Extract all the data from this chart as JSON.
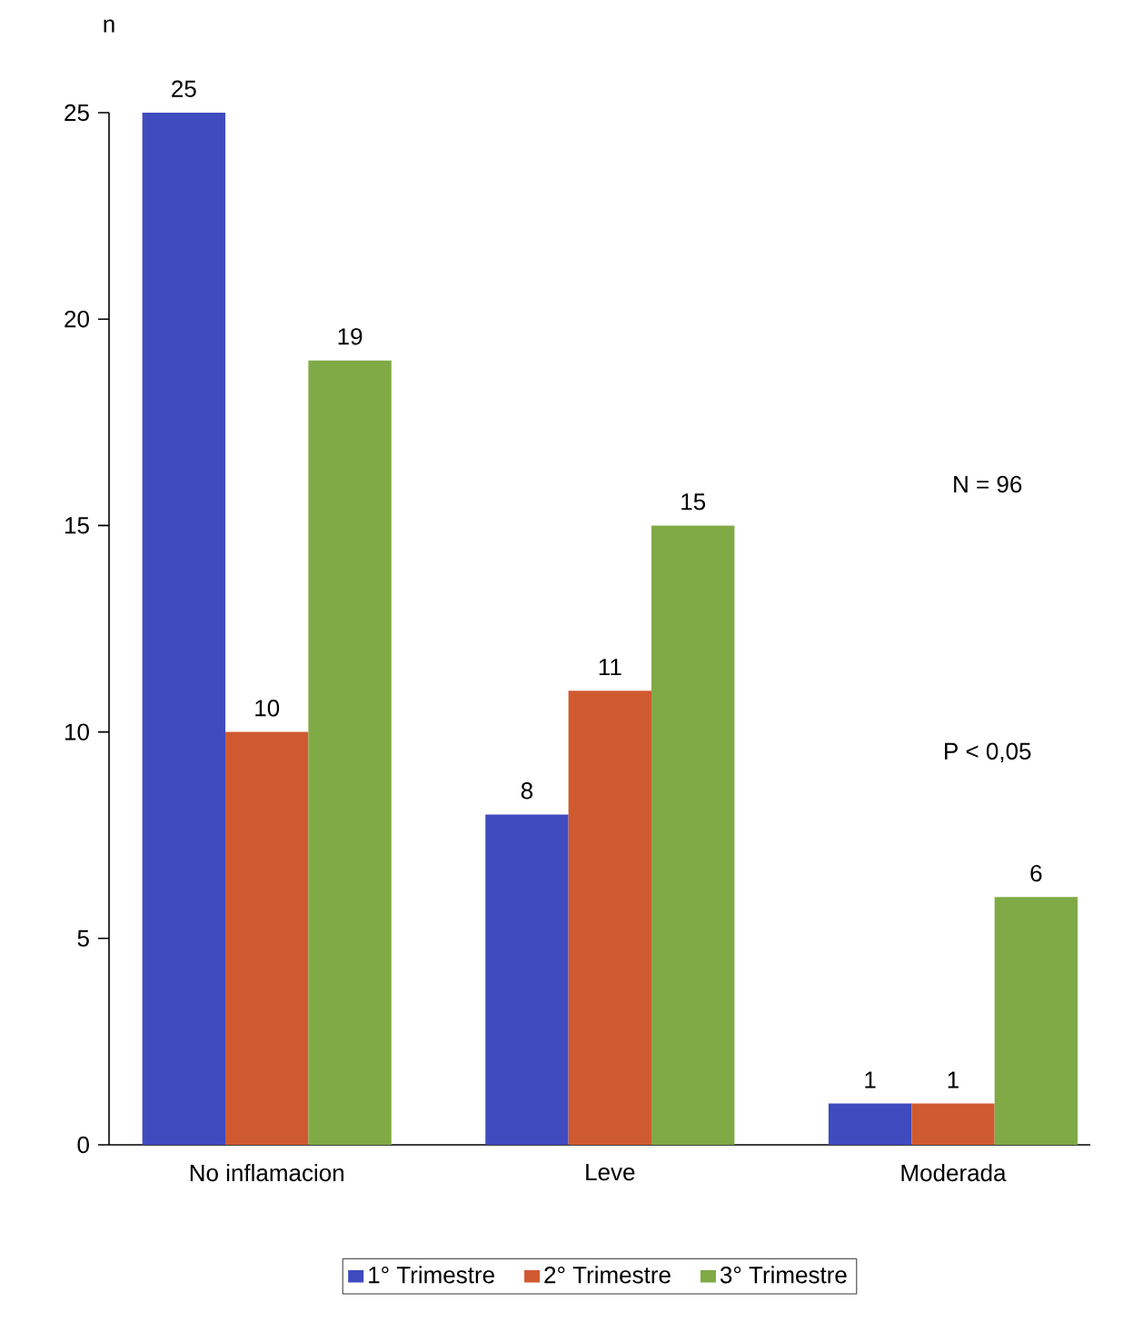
{
  "chart_data": {
    "type": "bar",
    "ylabel": "n",
    "categories": [
      "No inflamacion",
      "Leve",
      "Moderada"
    ],
    "series": [
      {
        "name": "1° Trimestre",
        "color": "#3f4bbf",
        "values": [
          25,
          8,
          1
        ]
      },
      {
        "name": "2° Trimestre",
        "color": "#d05a30",
        "values": [
          10,
          11,
          1
        ]
      },
      {
        "name": "3° Trimestre",
        "color": "#7faa45",
        "values": [
          19,
          15,
          6
        ]
      }
    ],
    "ylim": [
      0,
      25
    ],
    "yticks": [
      0,
      5,
      10,
      15,
      20,
      25
    ],
    "grid": false,
    "legend": "bottom",
    "data_labels": true,
    "annotations": [
      "N = 96",
      "P < 0,05"
    ]
  }
}
